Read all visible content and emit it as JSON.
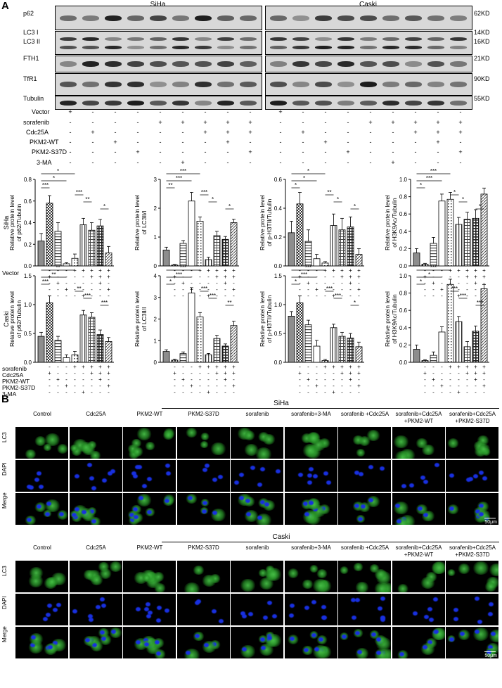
{
  "panel_a": {
    "label": "A",
    "groups": [
      {
        "name": "SiHa"
      },
      {
        "name": "Caski"
      }
    ],
    "blot_rows": [
      {
        "name": "p62",
        "kd": "62KD"
      },
      {
        "name": "LC3 I",
        "kd": "14KD"
      },
      {
        "name": "LC3 II",
        "kd": "16KD"
      },
      {
        "name": "FTH1",
        "kd": "21KD"
      },
      {
        "name": "TfR1",
        "kd": "90KD"
      },
      {
        "name": "Tubulin",
        "kd": "55KD"
      }
    ],
    "treatment_labels": [
      "Vector",
      "sorafenib",
      "Cdc25A",
      "PKM2-WT",
      "PKM2-S37D",
      "3-MA"
    ],
    "treatment_matrix": [
      [
        "+",
        "-",
        "-",
        "-",
        "-",
        "-",
        "-",
        "-",
        "-"
      ],
      [
        "-",
        "-",
        "-",
        "-",
        "+",
        "+",
        "+",
        "+",
        "+"
      ],
      [
        "-",
        "+",
        "-",
        "-",
        "-",
        "-",
        "+",
        "+",
        "+"
      ],
      [
        "-",
        "-",
        "+",
        "-",
        "-",
        "-",
        "-",
        "+",
        "-"
      ],
      [
        "-",
        "-",
        "-",
        "+",
        "-",
        "-",
        "-",
        "-",
        "+"
      ],
      [
        "-",
        "-",
        "-",
        "-",
        "-",
        "+",
        "-",
        "-",
        "-"
      ]
    ],
    "row_labels": [
      "SiHa",
      "Caski"
    ],
    "bar_treatment_labels": [
      "Vector",
      "Cdc25A",
      "PKM2-WT",
      "PKM2-S37D",
      "sorafenib",
      "3-MA"
    ]
  },
  "chart_data": [
    {
      "type": "bar",
      "group": "SiHa",
      "ylabel": "Relative protein level of p62/Tubulin",
      "ylim": [
        0,
        0.8
      ],
      "yticks": [
        "0.0",
        "0.2",
        "0.4",
        "0.6",
        "0.8"
      ],
      "values": [
        0.23,
        0.58,
        0.32,
        0.02,
        0.07,
        0.38,
        0.33,
        0.37,
        0.12
      ],
      "errors": [
        0.07,
        0.07,
        0.08,
        0.01,
        0.04,
        0.06,
        0.07,
        0.06,
        0.06
      ],
      "sig": [
        [
          "0",
          "4",
          "*"
        ],
        [
          "0",
          "3",
          "*"
        ],
        [
          "0",
          "1",
          "***"
        ],
        [
          "4",
          "5",
          "***"
        ],
        [
          "5",
          "6",
          "**"
        ],
        [
          "7",
          "8",
          "*"
        ]
      ]
    },
    {
      "type": "bar",
      "group": "SiHa",
      "ylabel": "Relative protein level of LC3Ⅱ/Ⅰ",
      "ylim": [
        0,
        3
      ],
      "yticks": [
        "0",
        "1",
        "2",
        "3"
      ],
      "values": [
        0.55,
        0.03,
        0.78,
        2.25,
        1.55,
        0.22,
        1.05,
        0.92,
        1.5
      ],
      "errors": [
        0.1,
        0.02,
        0.1,
        0.3,
        0.15,
        0.08,
        0.15,
        0.1,
        0.12
      ],
      "sig": [
        [
          "0",
          "4",
          "***"
        ],
        [
          "0",
          "3",
          "***"
        ],
        [
          "0",
          "1",
          "**"
        ],
        [
          "4",
          "5",
          "***"
        ],
        [
          "5",
          "6",
          "*"
        ],
        [
          "7",
          "8",
          "*"
        ]
      ]
    },
    {
      "type": "bar",
      "group": "SiHa",
      "ylabel": "Relative protein level of p-H3TII/Tubulin",
      "ylim": [
        0,
        0.6
      ],
      "yticks": [
        "0.0",
        "0.2",
        "0.4",
        "0.6"
      ],
      "values": [
        0.23,
        0.43,
        0.17,
        0.05,
        0.02,
        0.28,
        0.25,
        0.27,
        0.08
      ],
      "errors": [
        0.08,
        0.08,
        0.08,
        0.03,
        0.01,
        0.08,
        0.08,
        0.07,
        0.04
      ],
      "sig": [
        [
          "0",
          "4",
          "*"
        ],
        [
          "0",
          "3",
          "*"
        ],
        [
          "0",
          "1",
          "*"
        ],
        [
          "4",
          "5",
          "**"
        ],
        [
          "5",
          "6",
          "*"
        ],
        [
          "7",
          "8",
          "*"
        ]
      ]
    },
    {
      "type": "bar",
      "group": "SiHa",
      "ylabel": "Relative protein level of H3K9Ac/Tubulin",
      "ylim": [
        0,
        1.0
      ],
      "yticks": [
        "0.0",
        "0.2",
        "0.4",
        "0.6",
        "0.8",
        "1.0"
      ],
      "values": [
        0.15,
        0.02,
        0.26,
        0.75,
        0.77,
        0.48,
        0.54,
        0.55,
        0.83
      ],
      "errors": [
        0.05,
        0.01,
        0.07,
        0.08,
        0.08,
        0.08,
        0.08,
        0.1,
        0.07
      ],
      "sig": [
        [
          "0",
          "4",
          "***"
        ],
        [
          "0",
          "3",
          "***"
        ],
        [
          "0",
          "1",
          "*"
        ],
        [
          "4",
          "5",
          "*"
        ],
        [
          "5",
          "6",
          "*"
        ],
        [
          "7",
          "8",
          "*"
        ]
      ]
    },
    {
      "type": "bar",
      "group": "Caski",
      "ylabel": "Relative protein level of p62/Tubulin",
      "ylim": [
        0,
        1.5
      ],
      "yticks": [
        "0.0",
        "0.5",
        "1.0",
        "1.5"
      ],
      "values": [
        0.45,
        1.03,
        0.38,
        0.08,
        0.13,
        0.82,
        0.78,
        0.48,
        0.36
      ],
      "errors": [
        0.07,
        0.12,
        0.07,
        0.05,
        0.06,
        0.08,
        0.08,
        0.08,
        0.07
      ],
      "sig": [
        [
          "0",
          "4",
          "**"
        ],
        [
          "0",
          "3",
          "**"
        ],
        [
          "0",
          "1",
          "***"
        ],
        [
          "4",
          "5",
          "**"
        ],
        [
          "5",
          "6",
          "***"
        ],
        [
          "7",
          "8",
          "***"
        ]
      ]
    },
    {
      "type": "bar",
      "group": "Caski",
      "ylabel": "Relative protein level of LC3Ⅱ/Ⅰ",
      "ylim": [
        0,
        4
      ],
      "yticks": [
        "0",
        "1",
        "2",
        "3",
        "4"
      ],
      "values": [
        0.5,
        0.1,
        0.4,
        3.2,
        2.1,
        0.35,
        1.1,
        0.75,
        1.7
      ],
      "errors": [
        0.08,
        0.04,
        0.08,
        0.25,
        0.2,
        0.06,
        0.15,
        0.1,
        0.2
      ],
      "sig": [
        [
          "0",
          "4",
          "***"
        ],
        [
          "0",
          "3",
          "***"
        ],
        [
          "0",
          "1",
          "*"
        ],
        [
          "4",
          "5",
          "***"
        ],
        [
          "5",
          "6",
          "***"
        ],
        [
          "7",
          "8",
          "**"
        ]
      ]
    },
    {
      "type": "bar",
      "group": "Caski",
      "ylabel": "Relative protein level of p-H3TII/Tubulin",
      "ylim": [
        0,
        1.5
      ],
      "yticks": [
        "0.0",
        "0.5",
        "1.0",
        "1.5"
      ],
      "values": [
        0.8,
        1.03,
        0.65,
        0.28,
        0.03,
        0.6,
        0.45,
        0.42,
        0.27
      ],
      "errors": [
        0.08,
        0.12,
        0.08,
        0.1,
        0.02,
        0.06,
        0.07,
        0.08,
        0.08
      ],
      "sig": [
        [
          "0",
          "4",
          "***"
        ],
        [
          "0",
          "3",
          "***"
        ],
        [
          "0",
          "1",
          "*"
        ],
        [
          "4",
          "5",
          "***"
        ],
        [
          "5",
          "6",
          "***"
        ],
        [
          "7",
          "8",
          "*"
        ]
      ]
    },
    {
      "type": "bar",
      "group": "Caski",
      "ylabel": "Relative protein level of H3K9Ac/Tubulin",
      "ylim": [
        0,
        1.0
      ],
      "yticks": [
        "0.0",
        "0.2",
        "0.4",
        "0.6",
        "0.8",
        "1.0"
      ],
      "values": [
        0.15,
        0.02,
        0.08,
        0.35,
        0.9,
        0.47,
        0.18,
        0.36,
        0.85
      ],
      "errors": [
        0.05,
        0.01,
        0.04,
        0.06,
        0.06,
        0.06,
        0.06,
        0.06,
        0.05
      ],
      "sig": [
        [
          "0",
          "4",
          "***"
        ],
        [
          "0",
          "3",
          "*"
        ],
        [
          "0",
          "1",
          "*"
        ],
        [
          "4",
          "5",
          "***"
        ],
        [
          "5",
          "6",
          "***"
        ],
        [
          "7",
          "8",
          "***"
        ]
      ]
    }
  ],
  "panel_b": {
    "label": "B",
    "conditions": [
      "Control",
      "Cdc25A",
      "PKM2-WT",
      "PKM2-S37D",
      "sorafenib",
      "sorafenib+3-MA",
      "sorafenib +Cdc25A",
      "sorafenib+Cdc25A +PKM2-WT",
      "sorafenib+Cdc25A +PKM2-S37D"
    ],
    "channels": [
      "LC3",
      "DAPI",
      "Merge"
    ],
    "groups": [
      "SiHa",
      "Caski"
    ],
    "scalebar": "50μm",
    "colors": {
      "lc3": "#2fae2f",
      "dapi": "#1c34e6"
    }
  }
}
